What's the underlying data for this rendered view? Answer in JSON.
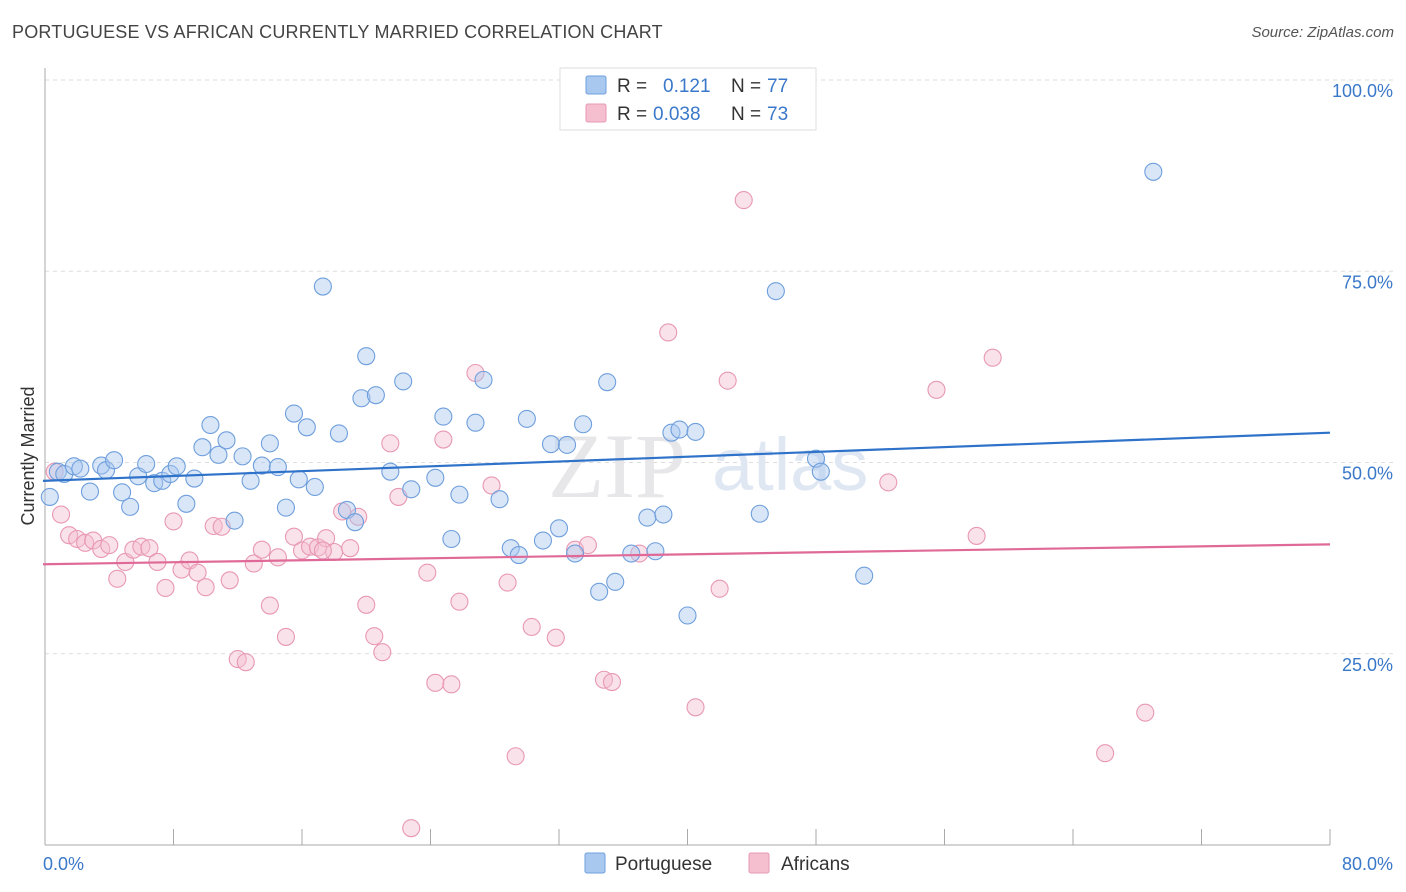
{
  "header": {
    "title": "PORTUGUESE VS AFRICAN CURRENTLY MARRIED CORRELATION CHART",
    "source": "Source: ZipAtlas.com"
  },
  "watermark": {
    "part1": "ZIP",
    "part2": "atlas"
  },
  "colors": {
    "blue_fill": "#a9c8f0",
    "blue_stroke": "#6f9fdc",
    "blue_line": "#2f72c9",
    "pink_fill": "#f5bfd0",
    "pink_stroke": "#e898b3",
    "pink_line": "#e06a97",
    "tick_text": "#3a78c9",
    "grid": "#dddddd"
  },
  "legend": {
    "r_label": "R =",
    "n_label": "N =",
    "rows": [
      {
        "r": "0.121",
        "n": "77"
      },
      {
        "r": "0.038",
        "n": "73"
      }
    ]
  },
  "chart_data": {
    "type": "scatter",
    "title": "PORTUGUESE VS AFRICAN CURRENTLY MARRIED CORRELATION CHART",
    "xlabel": "",
    "ylabel": "Currently Married",
    "xlim": [
      0,
      80
    ],
    "ylim": [
      0,
      100
    ],
    "x_tick_labels": [
      "0.0%",
      "80.0%"
    ],
    "y_ticks": [
      25,
      50,
      75,
      100
    ],
    "y_tick_labels": [
      "25.0%",
      "50.0%",
      "75.0%",
      "100.0%"
    ],
    "grid": true,
    "legend_position": "top-center",
    "series": [
      {
        "name": "Portuguese",
        "color": "#6f9fdc",
        "trend": {
          "x": [
            0,
            80
          ],
          "y": [
            47.6,
            53.9
          ]
        },
        "points": [
          [
            0.3,
            45.5
          ],
          [
            0.8,
            48.8
          ],
          [
            1.2,
            48.5
          ],
          [
            1.8,
            49.5
          ],
          [
            2.2,
            49.2
          ],
          [
            2.8,
            46.2
          ],
          [
            3.5,
            49.6
          ],
          [
            3.8,
            49.0
          ],
          [
            4.3,
            50.3
          ],
          [
            4.8,
            46.1
          ],
          [
            5.3,
            44.2
          ],
          [
            5.8,
            48.2
          ],
          [
            6.3,
            49.8
          ],
          [
            6.8,
            47.3
          ],
          [
            7.3,
            47.6
          ],
          [
            7.8,
            48.5
          ],
          [
            8.2,
            49.5
          ],
          [
            8.8,
            44.6
          ],
          [
            9.3,
            47.9
          ],
          [
            9.8,
            52.0
          ],
          [
            10.3,
            54.9
          ],
          [
            10.8,
            51.0
          ],
          [
            11.3,
            52.9
          ],
          [
            11.8,
            42.4
          ],
          [
            12.3,
            50.8
          ],
          [
            12.8,
            47.6
          ],
          [
            13.5,
            49.6
          ],
          [
            14.0,
            52.5
          ],
          [
            14.5,
            49.4
          ],
          [
            15.0,
            44.1
          ],
          [
            15.5,
            56.4
          ],
          [
            15.8,
            47.8
          ],
          [
            16.3,
            54.6
          ],
          [
            16.8,
            46.8
          ],
          [
            17.3,
            73.0
          ],
          [
            18.3,
            53.8
          ],
          [
            18.8,
            43.8
          ],
          [
            19.3,
            42.2
          ],
          [
            19.7,
            58.4
          ],
          [
            20.0,
            63.9
          ],
          [
            20.6,
            58.8
          ],
          [
            21.5,
            48.8
          ],
          [
            22.3,
            60.6
          ],
          [
            22.8,
            46.5
          ],
          [
            24.3,
            48.0
          ],
          [
            24.8,
            56.0
          ],
          [
            25.3,
            40.0
          ],
          [
            25.8,
            45.8
          ],
          [
            26.8,
            55.2
          ],
          [
            27.3,
            60.8
          ],
          [
            28.3,
            45.2
          ],
          [
            29.0,
            38.8
          ],
          [
            29.5,
            37.9
          ],
          [
            30.0,
            55.7
          ],
          [
            31.0,
            39.8
          ],
          [
            31.5,
            52.4
          ],
          [
            32.0,
            41.4
          ],
          [
            32.5,
            52.3
          ],
          [
            33.0,
            38.1
          ],
          [
            33.5,
            55.0
          ],
          [
            34.5,
            33.1
          ],
          [
            35.0,
            60.5
          ],
          [
            35.5,
            34.4
          ],
          [
            36.5,
            38.1
          ],
          [
            37.5,
            42.8
          ],
          [
            38.0,
            38.4
          ],
          [
            38.5,
            43.2
          ],
          [
            39.0,
            53.9
          ],
          [
            39.5,
            54.3
          ],
          [
            40.5,
            54.0
          ],
          [
            44.5,
            43.3
          ],
          [
            45.5,
            72.4
          ],
          [
            48.0,
            50.5
          ],
          [
            48.3,
            48.8
          ],
          [
            51.0,
            35.2
          ],
          [
            69.0,
            88.0
          ],
          [
            40.0,
            30.0
          ]
        ]
      },
      {
        "name": "Africans",
        "color": "#e898b3",
        "trend": {
          "x": [
            0,
            80
          ],
          "y": [
            36.7,
            39.3
          ]
        },
        "points": [
          [
            0.6,
            48.8
          ],
          [
            1.0,
            43.2
          ],
          [
            1.5,
            40.5
          ],
          [
            2.0,
            40.0
          ],
          [
            2.5,
            39.5
          ],
          [
            3.0,
            39.8
          ],
          [
            3.5,
            38.7
          ],
          [
            4.0,
            39.2
          ],
          [
            4.5,
            34.8
          ],
          [
            5.0,
            37.0
          ],
          [
            5.5,
            38.6
          ],
          [
            6.0,
            39.0
          ],
          [
            6.5,
            38.8
          ],
          [
            7.0,
            37.0
          ],
          [
            7.5,
            33.6
          ],
          [
            8.0,
            42.3
          ],
          [
            8.5,
            36.0
          ],
          [
            9.0,
            37.2
          ],
          [
            9.5,
            35.6
          ],
          [
            10.0,
            33.7
          ],
          [
            10.5,
            41.7
          ],
          [
            11.0,
            41.6
          ],
          [
            11.5,
            34.6
          ],
          [
            12.0,
            24.3
          ],
          [
            12.5,
            23.9
          ],
          [
            13.0,
            36.8
          ],
          [
            13.5,
            38.6
          ],
          [
            14.0,
            31.3
          ],
          [
            14.5,
            37.6
          ],
          [
            15.0,
            27.2
          ],
          [
            15.5,
            40.3
          ],
          [
            16.0,
            38.5
          ],
          [
            16.5,
            39.0
          ],
          [
            17.0,
            38.9
          ],
          [
            17.5,
            40.1
          ],
          [
            18.0,
            38.3
          ],
          [
            18.5,
            43.6
          ],
          [
            19.0,
            38.8
          ],
          [
            19.5,
            42.9
          ],
          [
            20.0,
            31.4
          ],
          [
            20.5,
            27.3
          ],
          [
            21.0,
            25.2
          ],
          [
            21.5,
            52.5
          ],
          [
            22.0,
            45.5
          ],
          [
            22.8,
            2.2
          ],
          [
            23.8,
            35.6
          ],
          [
            24.3,
            21.2
          ],
          [
            24.8,
            53.0
          ],
          [
            25.3,
            21.0
          ],
          [
            25.8,
            31.8
          ],
          [
            26.8,
            61.7
          ],
          [
            27.8,
            47.0
          ],
          [
            28.8,
            34.3
          ],
          [
            29.3,
            11.6
          ],
          [
            30.3,
            28.5
          ],
          [
            31.8,
            27.1
          ],
          [
            33.0,
            38.6
          ],
          [
            33.8,
            39.2
          ],
          [
            34.8,
            21.6
          ],
          [
            35.3,
            21.3
          ],
          [
            38.8,
            67.0
          ],
          [
            40.5,
            18.0
          ],
          [
            42.0,
            33.5
          ],
          [
            42.5,
            60.7
          ],
          [
            43.5,
            84.3
          ],
          [
            52.5,
            47.4
          ],
          [
            55.5,
            59.5
          ],
          [
            58.0,
            40.4
          ],
          [
            59.0,
            63.7
          ],
          [
            66.0,
            12.0
          ],
          [
            68.5,
            17.3
          ],
          [
            17.3,
            38.5
          ],
          [
            37.0,
            38.1
          ]
        ]
      }
    ]
  }
}
